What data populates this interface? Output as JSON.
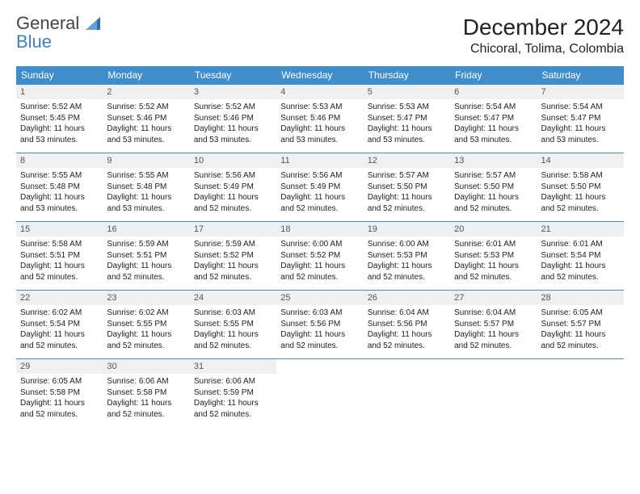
{
  "logo": {
    "top": "General",
    "bottom": "Blue"
  },
  "title": "December 2024",
  "location": "Chicoral, Tolima, Colombia",
  "colors": {
    "header_bg": "#3f8ecb",
    "header_text": "#ffffff",
    "daynum_bg": "#eef0f1",
    "week_divider": "#3f8ecb",
    "logo_blue": "#3f7fbf"
  },
  "fonts": {
    "title_pt": 28,
    "location_pt": 16,
    "header_pt": 12,
    "daynum_pt": 11,
    "body_pt": 10
  },
  "day_names": [
    "Sunday",
    "Monday",
    "Tuesday",
    "Wednesday",
    "Thursday",
    "Friday",
    "Saturday"
  ],
  "labels": {
    "sunrise": "Sunrise:",
    "sunset": "Sunset:",
    "daylight": "Daylight:"
  },
  "weeks": [
    [
      {
        "n": "1",
        "sunrise": "5:52 AM",
        "sunset": "5:45 PM",
        "daylight": "11 hours and 53 minutes."
      },
      {
        "n": "2",
        "sunrise": "5:52 AM",
        "sunset": "5:46 PM",
        "daylight": "11 hours and 53 minutes."
      },
      {
        "n": "3",
        "sunrise": "5:52 AM",
        "sunset": "5:46 PM",
        "daylight": "11 hours and 53 minutes."
      },
      {
        "n": "4",
        "sunrise": "5:53 AM",
        "sunset": "5:46 PM",
        "daylight": "11 hours and 53 minutes."
      },
      {
        "n": "5",
        "sunrise": "5:53 AM",
        "sunset": "5:47 PM",
        "daylight": "11 hours and 53 minutes."
      },
      {
        "n": "6",
        "sunrise": "5:54 AM",
        "sunset": "5:47 PM",
        "daylight": "11 hours and 53 minutes."
      },
      {
        "n": "7",
        "sunrise": "5:54 AM",
        "sunset": "5:47 PM",
        "daylight": "11 hours and 53 minutes."
      }
    ],
    [
      {
        "n": "8",
        "sunrise": "5:55 AM",
        "sunset": "5:48 PM",
        "daylight": "11 hours and 53 minutes."
      },
      {
        "n": "9",
        "sunrise": "5:55 AM",
        "sunset": "5:48 PM",
        "daylight": "11 hours and 53 minutes."
      },
      {
        "n": "10",
        "sunrise": "5:56 AM",
        "sunset": "5:49 PM",
        "daylight": "11 hours and 52 minutes."
      },
      {
        "n": "11",
        "sunrise": "5:56 AM",
        "sunset": "5:49 PM",
        "daylight": "11 hours and 52 minutes."
      },
      {
        "n": "12",
        "sunrise": "5:57 AM",
        "sunset": "5:50 PM",
        "daylight": "11 hours and 52 minutes."
      },
      {
        "n": "13",
        "sunrise": "5:57 AM",
        "sunset": "5:50 PM",
        "daylight": "11 hours and 52 minutes."
      },
      {
        "n": "14",
        "sunrise": "5:58 AM",
        "sunset": "5:50 PM",
        "daylight": "11 hours and 52 minutes."
      }
    ],
    [
      {
        "n": "15",
        "sunrise": "5:58 AM",
        "sunset": "5:51 PM",
        "daylight": "11 hours and 52 minutes."
      },
      {
        "n": "16",
        "sunrise": "5:59 AM",
        "sunset": "5:51 PM",
        "daylight": "11 hours and 52 minutes."
      },
      {
        "n": "17",
        "sunrise": "5:59 AM",
        "sunset": "5:52 PM",
        "daylight": "11 hours and 52 minutes."
      },
      {
        "n": "18",
        "sunrise": "6:00 AM",
        "sunset": "5:52 PM",
        "daylight": "11 hours and 52 minutes."
      },
      {
        "n": "19",
        "sunrise": "6:00 AM",
        "sunset": "5:53 PM",
        "daylight": "11 hours and 52 minutes."
      },
      {
        "n": "20",
        "sunrise": "6:01 AM",
        "sunset": "5:53 PM",
        "daylight": "11 hours and 52 minutes."
      },
      {
        "n": "21",
        "sunrise": "6:01 AM",
        "sunset": "5:54 PM",
        "daylight": "11 hours and 52 minutes."
      }
    ],
    [
      {
        "n": "22",
        "sunrise": "6:02 AM",
        "sunset": "5:54 PM",
        "daylight": "11 hours and 52 minutes."
      },
      {
        "n": "23",
        "sunrise": "6:02 AM",
        "sunset": "5:55 PM",
        "daylight": "11 hours and 52 minutes."
      },
      {
        "n": "24",
        "sunrise": "6:03 AM",
        "sunset": "5:55 PM",
        "daylight": "11 hours and 52 minutes."
      },
      {
        "n": "25",
        "sunrise": "6:03 AM",
        "sunset": "5:56 PM",
        "daylight": "11 hours and 52 minutes."
      },
      {
        "n": "26",
        "sunrise": "6:04 AM",
        "sunset": "5:56 PM",
        "daylight": "11 hours and 52 minutes."
      },
      {
        "n": "27",
        "sunrise": "6:04 AM",
        "sunset": "5:57 PM",
        "daylight": "11 hours and 52 minutes."
      },
      {
        "n": "28",
        "sunrise": "6:05 AM",
        "sunset": "5:57 PM",
        "daylight": "11 hours and 52 minutes."
      }
    ],
    [
      {
        "n": "29",
        "sunrise": "6:05 AM",
        "sunset": "5:58 PM",
        "daylight": "11 hours and 52 minutes."
      },
      {
        "n": "30",
        "sunrise": "6:06 AM",
        "sunset": "5:58 PM",
        "daylight": "11 hours and 52 minutes."
      },
      {
        "n": "31",
        "sunrise": "6:06 AM",
        "sunset": "5:59 PM",
        "daylight": "11 hours and 52 minutes."
      },
      null,
      null,
      null,
      null
    ]
  ]
}
